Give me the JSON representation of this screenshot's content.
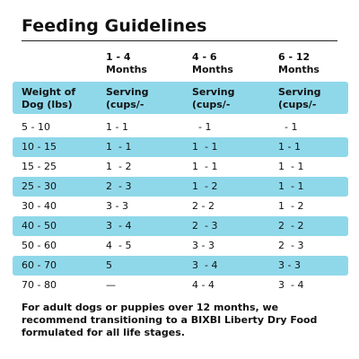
{
  "title": "Feeding Guidelines",
  "age_headers": [
    "1 - 4\nMonths",
    "4 - 6\nMonths",
    "6 - 12\nMonths"
  ],
  "column_headers": [
    "Weight of\nDog (lbs)",
    "Serving\n(cups/-",
    "Serving\n(cups/-",
    "Serving\n(cups/-"
  ],
  "rows": [
    [
      "5 - 10",
      "1 - 1",
      "  - 1",
      "  - 1"
    ],
    [
      "10 - 15",
      "1  - 1",
      "1  - 1",
      "1 - 1"
    ],
    [
      "15 - 25",
      "1  - 2",
      "1  - 1",
      "1  - 1"
    ],
    [
      "25 - 30",
      "2  - 3",
      "1  - 2",
      "1  - 1"
    ],
    [
      "30 - 40",
      "3 - 3",
      "2 - 2",
      "1  - 2"
    ],
    [
      "40 - 50",
      "3  - 4",
      "2  - 3",
      "2  - 2"
    ],
    [
      "50 - 60",
      "4  - 5",
      "3 - 3",
      "2  - 3"
    ],
    [
      "60 - 70",
      "5",
      "3  - 4",
      "3 - 3"
    ],
    [
      "70 - 80",
      "—",
      "4 - 4",
      "3  - 4"
    ]
  ],
  "footnote": "For adult dogs or puppies over 12 months, we recommend transitioning to a BIXBI Liberty Dry Food formulated for all life stages.",
  "colors": {
    "band": "#8fd8ea",
    "text": "#111111"
  }
}
